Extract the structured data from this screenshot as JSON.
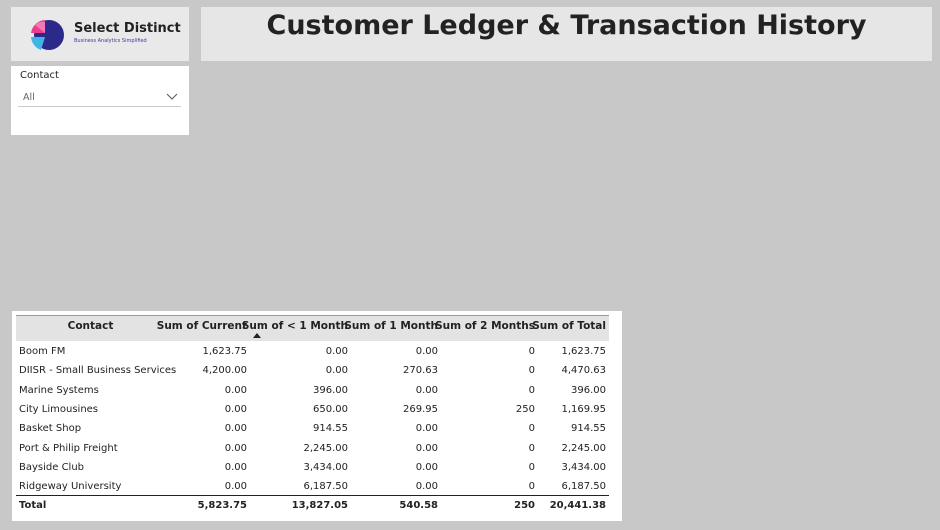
{
  "header": {
    "title": "Customer Ledger & Transaction History"
  },
  "logo": {
    "name": "Select Distinct",
    "tagline": "Business Analytics Simplified"
  },
  "slicer": {
    "label": "Contact",
    "value": "All"
  },
  "table": {
    "columns": [
      "Contact",
      "Sum of Current",
      "Sum of < 1 Month",
      "Sum of 1 Month",
      "Sum of 2 Months",
      "Sum of Total"
    ],
    "rows": [
      [
        "Boom FM",
        "1,623.75",
        "0.00",
        "0.00",
        "0",
        "1,623.75"
      ],
      [
        "DIISR - Small Business Services",
        "4,200.00",
        "0.00",
        "270.63",
        "0",
        "4,470.63"
      ],
      [
        "Marine Systems",
        "0.00",
        "396.00",
        "0.00",
        "0",
        "396.00"
      ],
      [
        "City Limousines",
        "0.00",
        "650.00",
        "269.95",
        "250",
        "1,169.95"
      ],
      [
        "Basket Shop",
        "0.00",
        "914.55",
        "0.00",
        "0",
        "914.55"
      ],
      [
        "Port & Philip Freight",
        "0.00",
        "2,245.00",
        "0.00",
        "0",
        "2,245.00"
      ],
      [
        "Bayside Club",
        "0.00",
        "3,434.00",
        "0.00",
        "0",
        "3,434.00"
      ],
      [
        "Ridgeway University",
        "0.00",
        "6,187.50",
        "0.00",
        "0",
        "6,187.50"
      ]
    ],
    "total": [
      "Total",
      "5,823.75",
      "13,827.05",
      "540.58",
      "250",
      "20,441.38"
    ]
  }
}
